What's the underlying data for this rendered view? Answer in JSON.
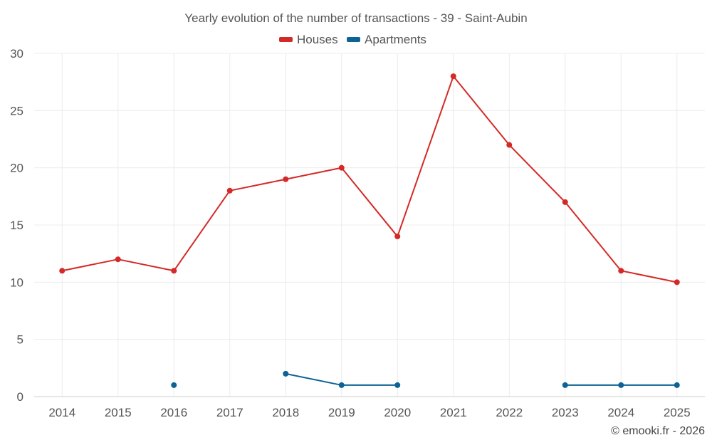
{
  "chart_data": {
    "type": "line",
    "title": "Yearly evolution of the number of transactions - 39 - Saint-Aubin",
    "categories": [
      "2014",
      "2015",
      "2016",
      "2017",
      "2018",
      "2019",
      "2020",
      "2021",
      "2022",
      "2023",
      "2024",
      "2025"
    ],
    "series": [
      {
        "name": "Houses",
        "color": "#d42a27",
        "values": [
          11,
          12,
          11,
          18,
          19,
          20,
          14,
          28,
          22,
          17,
          11,
          10
        ]
      },
      {
        "name": "Apartments",
        "color": "#0d6494",
        "values": [
          null,
          null,
          1,
          null,
          2,
          1,
          1,
          null,
          null,
          1,
          1,
          1
        ]
      }
    ],
    "ylim": [
      0,
      30
    ],
    "yticks": [
      0,
      5,
      10,
      15,
      20,
      25,
      30
    ],
    "grid": true,
    "legend_position": "top-center",
    "xlabel": "",
    "ylabel": ""
  },
  "credit": "© emooki.fr - 2026"
}
